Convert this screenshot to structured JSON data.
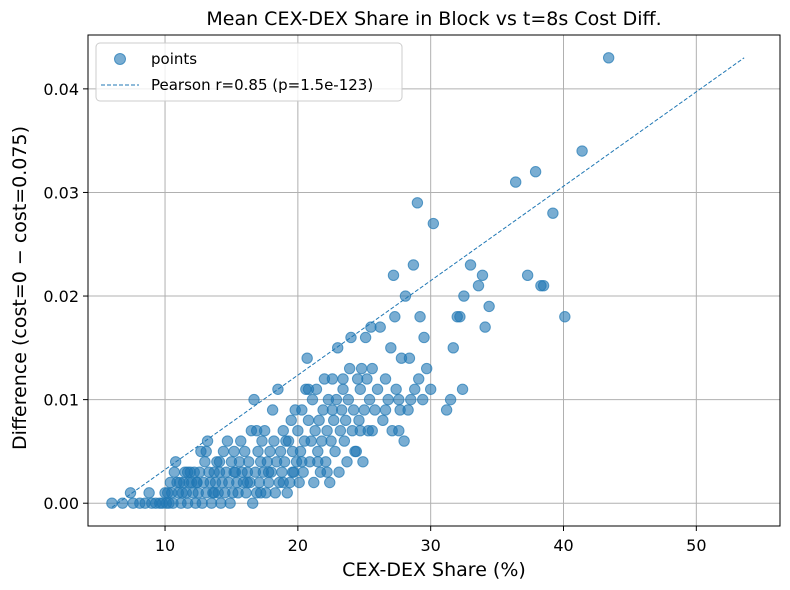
{
  "chart_data": {
    "type": "scatter",
    "title": "Mean CEX-DEX Share in Block vs t=8s Cost Diff.",
    "xlabel": "CEX-DEX Share (%)",
    "ylabel": "Difference (cost=0 − cost=0.075)",
    "xlim": [
      4.2,
      56.3
    ],
    "ylim": [
      -0.0022,
      0.0452
    ],
    "xticks": [
      10,
      20,
      30,
      40,
      50
    ],
    "xtick_labels": [
      "10",
      "20",
      "30",
      "40",
      "50"
    ],
    "yticks": [
      0.0,
      0.01,
      0.02,
      0.03,
      0.04
    ],
    "ytick_labels": [
      "0.00",
      "0.01",
      "0.02",
      "0.03",
      "0.04"
    ],
    "grid": true,
    "legend_position": "top-left",
    "colors": {
      "points": "#1f77b4",
      "line": "#1f77b4"
    },
    "series": [
      {
        "name": "points",
        "kind": "scatter",
        "points": [
          [
            6.0,
            0.0
          ],
          [
            6.8,
            0.0
          ],
          [
            7.4,
            0.001
          ],
          [
            7.6,
            0.0
          ],
          [
            8.1,
            0.0
          ],
          [
            8.5,
            0.0
          ],
          [
            8.8,
            0.001
          ],
          [
            9.0,
            0.0
          ],
          [
            9.3,
            0.0
          ],
          [
            9.6,
            0.0
          ],
          [
            9.8,
            0.0
          ],
          [
            10.0,
            0.001
          ],
          [
            10.1,
            0.0
          ],
          [
            10.2,
            0.001
          ],
          [
            10.3,
            0.0
          ],
          [
            10.5,
            0.001
          ],
          [
            10.6,
            0.0
          ],
          [
            10.7,
            0.003
          ],
          [
            10.8,
            0.004
          ],
          [
            10.9,
            0.002
          ],
          [
            11.0,
            0.001
          ],
          [
            11.1,
            0.002
          ],
          [
            11.2,
            0.0
          ],
          [
            11.3,
            0.001
          ],
          [
            11.4,
            0.002
          ],
          [
            11.5,
            0.003
          ],
          [
            11.6,
            0.001
          ],
          [
            11.7,
            0.0
          ],
          [
            11.8,
            0.002
          ],
          [
            11.9,
            0.003
          ],
          [
            12.0,
            0.002
          ],
          [
            12.1,
            0.001
          ],
          [
            12.2,
            0.003
          ],
          [
            12.3,
            0.0
          ],
          [
            12.4,
            0.002
          ],
          [
            12.5,
            0.001
          ],
          [
            12.6,
            0.003
          ],
          [
            12.7,
            0.005
          ],
          [
            12.8,
            0.0
          ],
          [
            12.9,
            0.002
          ],
          [
            13.0,
            0.004
          ],
          [
            13.1,
            0.001
          ],
          [
            13.2,
            0.006
          ],
          [
            13.3,
            0.003
          ],
          [
            13.4,
            0.002
          ],
          [
            13.5,
            0.0
          ],
          [
            13.6,
            0.001
          ],
          [
            13.7,
            0.003
          ],
          [
            13.8,
            0.002
          ],
          [
            13.9,
            0.004
          ],
          [
            14.0,
            0.001
          ],
          [
            14.1,
            0.003
          ],
          [
            14.2,
            0.0
          ],
          [
            14.3,
            0.002
          ],
          [
            14.4,
            0.005
          ],
          [
            14.5,
            0.001
          ],
          [
            14.6,
            0.003
          ],
          [
            14.7,
            0.006
          ],
          [
            14.8,
            0.002
          ],
          [
            14.9,
            0.0
          ],
          [
            15.0,
            0.004
          ],
          [
            15.1,
            0.001
          ],
          [
            15.2,
            0.005
          ],
          [
            15.3,
            0.003
          ],
          [
            15.4,
            0.002
          ],
          [
            15.5,
            0.001
          ],
          [
            15.6,
            0.004
          ],
          [
            15.7,
            0.006
          ],
          [
            15.8,
            0.003
          ],
          [
            15.9,
            0.002
          ],
          [
            16.0,
            0.005
          ],
          [
            16.1,
            0.001
          ],
          [
            16.2,
            0.003
          ],
          [
            16.3,
            0.004
          ],
          [
            16.4,
            0.002
          ],
          [
            16.5,
            0.007
          ],
          [
            16.6,
            0.0
          ],
          [
            16.7,
            0.01
          ],
          [
            16.8,
            0.003
          ],
          [
            16.9,
            0.001
          ],
          [
            17.0,
            0.005
          ],
          [
            17.1,
            0.002
          ],
          [
            17.2,
            0.004
          ],
          [
            17.3,
            0.006
          ],
          [
            17.4,
            0.003
          ],
          [
            17.5,
            0.007
          ],
          [
            17.6,
            0.001
          ],
          [
            17.7,
            0.004
          ],
          [
            17.8,
            0.002
          ],
          [
            17.9,
            0.005
          ],
          [
            18.0,
            0.003
          ],
          [
            18.1,
            0.009
          ],
          [
            18.2,
            0.006
          ],
          [
            18.3,
            0.001
          ],
          [
            18.4,
            0.004
          ],
          [
            18.5,
            0.011
          ],
          [
            18.6,
            0.002
          ],
          [
            18.7,
            0.005
          ],
          [
            18.8,
            0.003
          ],
          [
            18.9,
            0.007
          ],
          [
            19.0,
            0.004
          ],
          [
            19.2,
            0.001
          ],
          [
            19.3,
            0.006
          ],
          [
            19.4,
            0.002
          ],
          [
            19.5,
            0.008
          ],
          [
            19.6,
            0.005
          ],
          [
            19.7,
            0.003
          ],
          [
            19.8,
            0.009
          ],
          [
            19.9,
            0.004
          ],
          [
            20.0,
            0.007
          ],
          [
            20.1,
            0.002
          ],
          [
            20.2,
            0.005
          ],
          [
            20.3,
            0.009
          ],
          [
            20.4,
            0.003
          ],
          [
            20.5,
            0.006
          ],
          [
            20.6,
            0.011
          ],
          [
            20.7,
            0.014
          ],
          [
            20.8,
            0.008
          ],
          [
            20.9,
            0.004
          ],
          [
            21.0,
            0.006
          ],
          [
            21.1,
            0.01
          ],
          [
            21.2,
            0.002
          ],
          [
            21.3,
            0.007
          ],
          [
            21.4,
            0.011
          ],
          [
            21.5,
            0.005
          ],
          [
            21.6,
            0.008
          ],
          [
            21.7,
            0.003
          ],
          [
            21.8,
            0.006
          ],
          [
            21.9,
            0.009
          ],
          [
            22.0,
            0.012
          ],
          [
            22.1,
            0.004
          ],
          [
            22.2,
            0.007
          ],
          [
            22.3,
            0.01
          ],
          [
            22.4,
            0.002
          ],
          [
            22.5,
            0.006
          ],
          [
            22.6,
            0.012
          ],
          [
            22.7,
            0.008
          ],
          [
            22.8,
            0.005
          ],
          [
            22.9,
            0.01
          ],
          [
            23.0,
            0.015
          ],
          [
            23.1,
            0.003
          ],
          [
            23.2,
            0.007
          ],
          [
            23.3,
            0.009
          ],
          [
            23.4,
            0.011
          ],
          [
            23.5,
            0.006
          ],
          [
            23.6,
            0.008
          ],
          [
            23.7,
            0.004
          ],
          [
            23.8,
            0.01
          ],
          [
            23.9,
            0.013
          ],
          [
            24.0,
            0.016
          ],
          [
            24.1,
            0.007
          ],
          [
            24.2,
            0.009
          ],
          [
            24.4,
            0.005
          ],
          [
            24.5,
            0.012
          ],
          [
            24.6,
            0.008
          ],
          [
            24.7,
            0.011
          ],
          [
            24.8,
            0.013
          ],
          [
            24.9,
            0.004
          ],
          [
            25.0,
            0.009
          ],
          [
            25.1,
            0.016
          ],
          [
            25.2,
            0.012
          ],
          [
            25.3,
            0.007
          ],
          [
            25.4,
            0.01
          ],
          [
            25.5,
            0.017
          ],
          [
            25.6,
            0.013
          ],
          [
            25.8,
            0.009
          ],
          [
            26.0,
            0.011
          ],
          [
            26.2,
            0.017
          ],
          [
            26.4,
            0.008
          ],
          [
            26.6,
            0.012
          ],
          [
            26.8,
            0.01
          ],
          [
            27.0,
            0.015
          ],
          [
            27.1,
            0.007
          ],
          [
            27.2,
            0.022
          ],
          [
            27.3,
            0.018
          ],
          [
            27.4,
            0.011
          ],
          [
            27.6,
            0.007
          ],
          [
            27.7,
            0.009
          ],
          [
            27.8,
            0.014
          ],
          [
            28.0,
            0.006
          ],
          [
            28.1,
            0.02
          ],
          [
            28.3,
            0.009
          ],
          [
            28.5,
            0.01
          ],
          [
            28.7,
            0.023
          ],
          [
            28.8,
            0.011
          ],
          [
            29.0,
            0.029
          ],
          [
            29.1,
            0.012
          ],
          [
            29.2,
            0.018
          ],
          [
            29.4,
            0.01
          ],
          [
            29.5,
            0.016
          ],
          [
            29.7,
            0.013
          ],
          [
            30.0,
            0.011
          ],
          [
            30.2,
            0.027
          ],
          [
            31.2,
            0.009
          ],
          [
            31.5,
            0.01
          ],
          [
            31.7,
            0.015
          ],
          [
            32.0,
            0.018
          ],
          [
            32.2,
            0.018
          ],
          [
            32.4,
            0.011
          ],
          [
            32.5,
            0.02
          ],
          [
            33.0,
            0.023
          ],
          [
            33.6,
            0.021
          ],
          [
            33.9,
            0.022
          ],
          [
            34.1,
            0.017
          ],
          [
            34.4,
            0.019
          ],
          [
            36.4,
            0.031
          ],
          [
            37.3,
            0.022
          ],
          [
            37.9,
            0.032
          ],
          [
            38.3,
            0.021
          ],
          [
            38.5,
            0.021
          ],
          [
            39.2,
            0.028
          ],
          [
            40.1,
            0.018
          ],
          [
            41.4,
            0.034
          ],
          [
            43.4,
            0.043
          ],
          [
            12.4,
            0.002
          ],
          [
            13.7,
            0.001
          ],
          [
            15.2,
            0.003
          ],
          [
            16.2,
            0.002
          ],
          [
            17.2,
            0.001
          ],
          [
            18.9,
            0.002
          ],
          [
            19.6,
            0.003
          ],
          [
            21.5,
            0.004
          ],
          [
            22.2,
            0.003
          ],
          [
            24.3,
            0.005
          ],
          [
            25.6,
            0.007
          ],
          [
            26.6,
            0.009
          ],
          [
            27.6,
            0.01
          ],
          [
            20.8,
            0.011
          ],
          [
            22.6,
            0.009
          ],
          [
            23.4,
            0.012
          ],
          [
            16.9,
            0.007
          ],
          [
            19.1,
            0.006
          ],
          [
            14.1,
            0.004
          ],
          [
            11.7,
            0.003
          ],
          [
            10.4,
            0.002
          ],
          [
            13.1,
            0.005
          ],
          [
            17.8,
            0.003
          ],
          [
            20.3,
            0.004
          ],
          [
            24.7,
            0.007
          ],
          [
            28.4,
            0.014
          ]
        ]
      },
      {
        "name": "Pearson r=0.85 (p=1.5e-123)",
        "kind": "line",
        "x": [
          6.0,
          53.6
        ],
        "y": [
          -0.0004,
          0.043
        ]
      }
    ]
  }
}
